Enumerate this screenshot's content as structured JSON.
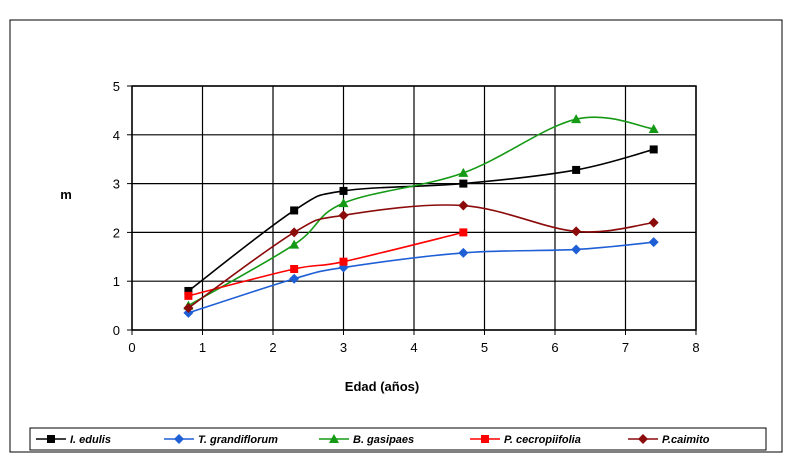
{
  "chart_data": {
    "type": "line",
    "title": "",
    "xlabel": "Edad (años)",
    "ylabel": "m",
    "xlim": [
      0,
      8
    ],
    "ylim": [
      0,
      5
    ],
    "x_ticks": [
      "0",
      "1",
      "2",
      "3",
      "4",
      "5",
      "6",
      "7",
      "8"
    ],
    "y_ticks": [
      "0",
      "1",
      "2",
      "3",
      "4",
      "5"
    ],
    "grid": true,
    "legend_position": "bottom",
    "series": [
      {
        "name": "I. edulis",
        "color": "#000000",
        "marker": "square",
        "x": [
          0.8,
          2.3,
          3.0,
          4.7,
          6.3,
          7.4
        ],
        "y": [
          0.8,
          2.45,
          2.85,
          3.0,
          3.28,
          3.7
        ]
      },
      {
        "name": "T. grandiflorum",
        "color": "#1f5fd6",
        "marker": "diamond",
        "x": [
          0.8,
          2.3,
          3.0,
          4.7,
          6.3,
          7.4
        ],
        "y": [
          0.35,
          1.05,
          1.28,
          1.58,
          1.65,
          1.8
        ]
      },
      {
        "name": "B. gasipaes",
        "color": "#159a15",
        "marker": "triangle",
        "x": [
          0.8,
          2.3,
          3.0,
          4.7,
          6.3,
          7.4
        ],
        "y": [
          0.5,
          1.75,
          2.6,
          3.22,
          4.32,
          4.12
        ]
      },
      {
        "name": "P. cecropiifolia",
        "color": "#ff0000",
        "marker": "square",
        "x": [
          0.8,
          2.3,
          3.0,
          4.7
        ],
        "y": [
          0.7,
          1.25,
          1.4,
          2.0
        ]
      },
      {
        "name": "P.caimito",
        "color": "#8b0a0a",
        "marker": "diamond",
        "x": [
          0.8,
          2.3,
          3.0,
          4.7,
          6.3,
          7.4
        ],
        "y": [
          0.45,
          2.0,
          2.35,
          2.55,
          2.02,
          2.2
        ]
      }
    ]
  }
}
